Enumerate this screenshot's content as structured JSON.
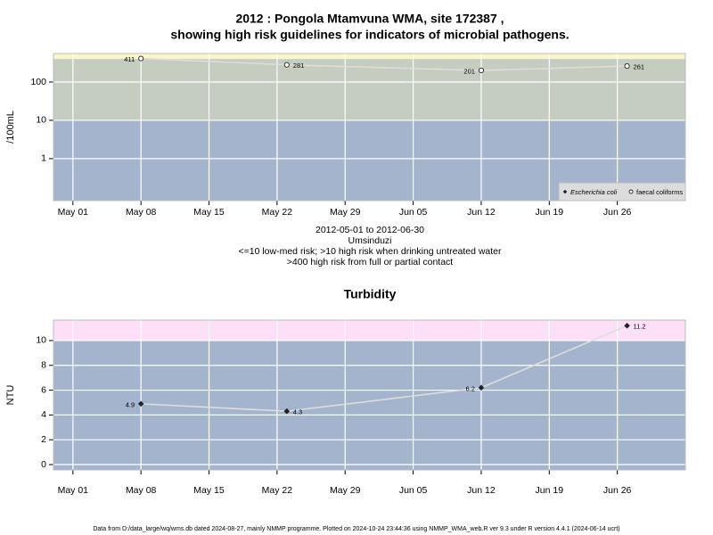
{
  "footer": "Data from D:/data_large/wq/wms.db dated 2024-08-27, mainly NMMP programme. Plotted on 2024-10-24 23:44:36 using NMMP_WMA_web.R ver 9.3 under R version 4.4.1 (2024-06-14 ucrt)",
  "chart_data": [
    {
      "type": "line",
      "title": [
        "2012 : Pongola Mtamvuna WMA, site 172387 ,",
        "showing high risk guidelines for indicators of microbial pathogens."
      ],
      "subtitle": [
        "2012-05-01 to 2012-06-30",
        "Umsinduzi",
        "<=10 low-med risk; >10 high risk when drinking untreated water",
        ">400 high risk from full or partial contact"
      ],
      "ylabel": "/100mL",
      "log": true,
      "x": [
        "2012-05-08",
        "2012-05-23",
        "2012-06-12",
        "2012-06-27"
      ],
      "xlim": [
        "2012-04-29",
        "2012-07-03"
      ],
      "xticks": [
        {
          "value": "2012-05-01",
          "label": "May 01"
        },
        {
          "value": "2012-05-08",
          "label": "May 08"
        },
        {
          "value": "2012-05-15",
          "label": "May 15"
        },
        {
          "value": "2012-05-22",
          "label": "May 22"
        },
        {
          "value": "2012-05-29",
          "label": "May 29"
        },
        {
          "value": "2012-06-05",
          "label": "Jun 05"
        },
        {
          "value": "2012-06-12",
          "label": "Jun 12"
        },
        {
          "value": "2012-06-19",
          "label": "Jun 19"
        },
        {
          "value": "2012-06-26",
          "label": "Jun 26"
        }
      ],
      "ylim": [
        0.08,
        555
      ],
      "yticks": [
        1,
        10,
        100
      ],
      "grid": true,
      "thresholds": [
        10,
        400
      ],
      "band_colors": [
        "#a3b4cc",
        "#c4cdc0",
        "#fbf6c8"
      ],
      "line_color": "#dddddd",
      "legend": "bottom-right",
      "series": [
        {
          "name": "Escherichia coli",
          "marker": "diamond",
          "color": "#222222",
          "values": [
            null,
            null,
            null,
            null
          ]
        },
        {
          "name": "faecal coliforms",
          "marker": "circle",
          "color": "#222222",
          "values": [
            411,
            281,
            201,
            261
          ]
        }
      ]
    },
    {
      "type": "line",
      "title": [
        "Turbidity"
      ],
      "ylabel": "NTU",
      "log": false,
      "x": [
        "2012-05-08",
        "2012-05-23",
        "2012-06-12",
        "2012-06-27"
      ],
      "xlim": [
        "2012-04-29",
        "2012-07-03"
      ],
      "xticks": [
        {
          "value": "2012-05-01",
          "label": "May 01"
        },
        {
          "value": "2012-05-08",
          "label": "May 08"
        },
        {
          "value": "2012-05-15",
          "label": "May 15"
        },
        {
          "value": "2012-05-22",
          "label": "May 22"
        },
        {
          "value": "2012-05-29",
          "label": "May 29"
        },
        {
          "value": "2012-06-05",
          "label": "Jun 05"
        },
        {
          "value": "2012-06-12",
          "label": "Jun 12"
        },
        {
          "value": "2012-06-19",
          "label": "Jun 19"
        },
        {
          "value": "2012-06-26",
          "label": "Jun 26"
        }
      ],
      "ylim": [
        -0.43,
        11.65
      ],
      "yticks": [
        0,
        2,
        4,
        6,
        8,
        10
      ],
      "grid": true,
      "thresholds": [
        10
      ],
      "band_colors": [
        "#a3b4cc",
        "#fde0f8"
      ],
      "line_color": "#dddddd",
      "series": [
        {
          "marker": "diamond",
          "color": "#222222",
          "values": [
            4.9,
            4.3,
            6.2,
            11.2
          ]
        }
      ]
    }
  ]
}
